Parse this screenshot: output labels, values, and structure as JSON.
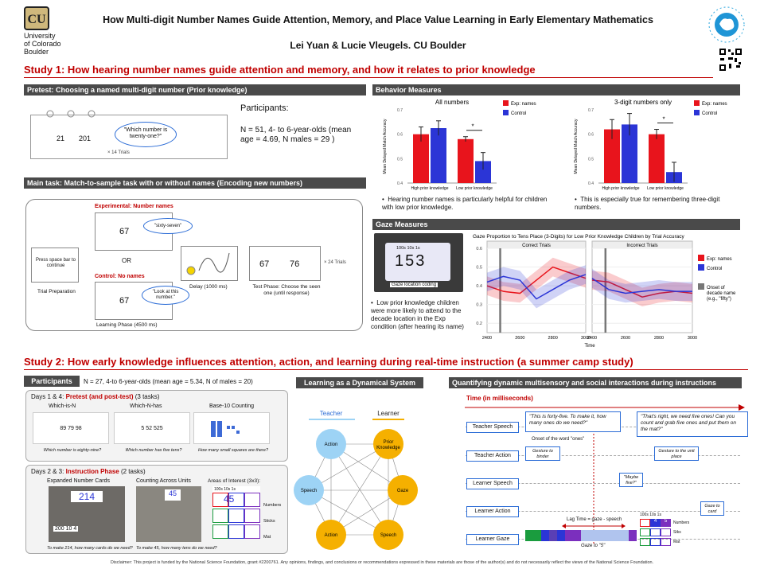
{
  "header": {
    "university_line1": "University",
    "university_line2": "of Colorado",
    "university_line3": "Boulder",
    "title": "How Multi-digit Number Names Guide Attention, Memory, and Place Value Learning in Early Elementary Mathematics",
    "authors": "Lei Yuan & Lucie Vleugels. CU Boulder"
  },
  "study1": {
    "heading": "Study 1: How hearing number names guide attention and memory, and how it relates to prior knowledge",
    "pretest": {
      "title": "Pretest: Choosing a named multi-digit number (Prior knowledge)",
      "num_a": "21",
      "num_b": "201",
      "bubble": "\"Which number is twenty-one?\"",
      "trials": "× 14 Trials",
      "participants_label": "Participants:",
      "participants_text": "N = 51, 4- to 6-year-olds (mean age = 4.69, N males = 29 )"
    },
    "main_task": {
      "title": "Main task: Match-to-sample task with or without names (Encoding new numbers)",
      "exp_label": "Experimental: Number names",
      "ctrl_label": "Control: No names",
      "sample_num": "67",
      "bubble_exp": "\"sixty-seven\"",
      "bubble_ctrl": "\"Look at this number.\"",
      "or_text": "OR",
      "press_space": "Press space bar to continue",
      "trial_prep": "Trial Preparation",
      "delay": "Delay (1000 ms)",
      "test_a": "67",
      "test_b": "76",
      "test_trials": "× 24 Trials",
      "test_phase": "Test Phase: Choose the seen one (until response)",
      "learning_phase": "Learning Phase (4500 ms)"
    },
    "behavior": {
      "title": "Behavior Measures",
      "bullet1": "Hearing number names is particularly helpful for children with low prior knowledge.",
      "bullet2": "This is especially true for remembering three-digit numbers."
    },
    "gaze": {
      "title": "Gaze Measures",
      "photo_num": "153",
      "photo_header": "100s 10s 1s",
      "photo_caption": "Gaze location coding",
      "bullet": "Low prior knowledge children were more likely to attend to the decade location in the Exp condition (after hearing its name)"
    }
  },
  "chart_data": [
    {
      "type": "bar",
      "title": "All numbers",
      "ylabel": "Mean Delayed Match Accuracy",
      "ylim": [
        0.4,
        0.7
      ],
      "yticks": [
        "0.4",
        "0.5",
        "0.6",
        "0.7"
      ],
      "categories": [
        "High prior knowledge",
        "Low prior knowledge"
      ],
      "series": [
        {
          "name": "Exp: names",
          "color": "#e8141c",
          "values": [
            0.6,
            0.58
          ],
          "errors": [
            0.03,
            0.01
          ]
        },
        {
          "name": "Control",
          "color": "#2b35d6",
          "values": [
            0.625,
            0.49
          ],
          "errors": [
            0.03,
            0.035
          ]
        }
      ],
      "annotation": "*",
      "legend": "top-right"
    },
    {
      "type": "bar",
      "title": "3-digit numbers only",
      "ylabel": "Mean Delayed Match Accuracy",
      "ylim": [
        0.4,
        0.7
      ],
      "yticks": [
        "0.4",
        "0.5",
        "0.6",
        "0.7"
      ],
      "categories": [
        "High prior knowledge",
        "Low prior knowledge"
      ],
      "series": [
        {
          "name": "Exp: names",
          "color": "#e8141c",
          "values": [
            0.62,
            0.6
          ],
          "errors": [
            0.04,
            0.02
          ]
        },
        {
          "name": "Control",
          "color": "#2b35d6",
          "values": [
            0.64,
            0.445
          ],
          "errors": [
            0.045,
            0.04
          ]
        }
      ],
      "annotation": "*",
      "legend": "top-right"
    },
    {
      "type": "line",
      "title": "Gaze Proportion to Tens Place (3-Digits) for Low Prior Knowledge Children by Trial Accuracy",
      "xlabel": "Time",
      "ylim": [
        0.15,
        0.6
      ],
      "yticks": [
        "0.2",
        "0.3",
        "0.4",
        "0.5",
        "0.6"
      ],
      "xticks": [
        "2400",
        "2600",
        "2800",
        "3000"
      ],
      "panels": [
        "Correct Trials",
        "Incorrect Trials"
      ],
      "x": [
        2400,
        2500,
        2600,
        2700,
        2800,
        2900,
        3000
      ],
      "series": [
        {
          "name": "Exp: names",
          "color": "#e8141c",
          "panel": "Correct Trials",
          "values": [
            0.4,
            0.37,
            0.36,
            0.43,
            0.5,
            0.47,
            0.44
          ]
        },
        {
          "name": "Control",
          "color": "#2b35d6",
          "panel": "Correct Trials",
          "values": [
            0.42,
            0.45,
            0.43,
            0.33,
            0.38,
            0.43,
            0.46
          ]
        },
        {
          "name": "Exp: names",
          "color": "#e8141c",
          "panel": "Incorrect Trials",
          "values": [
            0.43,
            0.42,
            0.38,
            0.34,
            0.36,
            0.37,
            0.36
          ]
        },
        {
          "name": "Control",
          "color": "#2b35d6",
          "panel": "Incorrect Trials",
          "values": [
            0.44,
            0.38,
            0.36,
            0.37,
            0.38,
            0.37,
            0.37
          ]
        }
      ],
      "vline_label": "Onset of decade name (e.g., \"fifty\")",
      "legend": "right"
    }
  ],
  "study2": {
    "heading": "Study 2: How early knowledge influences attention, action, and learning during real-time instruction (a summer camp study)",
    "participants_label": "Participants",
    "participants_text": "N = 27, 4-to 6-year-olds (mean age = 5.34, N of males = 20)",
    "days14_label": "Days 1 & 4:",
    "days14_phase": "Pretest (and post-test)",
    "days14_tasks": "(3 tasks)",
    "tasks": [
      {
        "name": "Which-is-N",
        "values": "89  79  98",
        "question": "Which number is eighty-nine?"
      },
      {
        "name": "Which-N-has",
        "values": "5   52  525",
        "question": "Which number has five tens?"
      },
      {
        "name": "Base-10 Counting",
        "values": "",
        "question": "How many small squares are there?"
      }
    ],
    "days23_label": "Days 2 & 3:",
    "days23_phase": "Instruction Phase",
    "days23_tasks": "(2 tasks)",
    "expanded_cards": "Expanded Number Cards",
    "counting_units": "Counting Across Units",
    "aoi": "Areas of Interest (3x3):",
    "card_num": "214",
    "card_small": "200  10  4",
    "aoi_header": "100s 10s 1s",
    "aoi_num": "45",
    "aoi_rows": [
      "Numbers",
      "Sticks",
      "Mat"
    ],
    "q1": "To make 214, how many cards do we need?",
    "q2": "To make 45, how many tens do we need?",
    "dyn_title": "Learning as a Dynamical System",
    "teacher": "Teacher",
    "learner": "Learner",
    "nodes": [
      "Action",
      "Prior Knowledge",
      "Speech",
      "Gaze",
      "Action",
      "Speech"
    ],
    "quant_title": "Quantifying dynamic multisensory and social interactions during instructions",
    "time_label": "Time (in milliseconds)",
    "rows": [
      "Teacher Speech",
      "Teacher Action",
      "Learner Speech",
      "Learner Action",
      "Learner Gaze"
    ],
    "quote1": "\"This is forty-five. To make it, how many ones do we need?\"",
    "quote2": "\"That's right, we need five ones! Can you count and grab five ones and put them on the mat?\"",
    "onset": "Onset of the word \"ones\"",
    "gesture1": "Gesture to binder",
    "gesture2": "Gesture to the unit place",
    "maybe": "\"Maybe five?\"",
    "gaze_card": "Gaze to card",
    "lag": "Lag Time = gaze - speech",
    "gaze5": "Gaze to \"5\"",
    "mini_header": "100s 10s 1s",
    "mini_rows": [
      "Numbers",
      "Stks",
      "Mat"
    ],
    "mini_digits": [
      "4",
      "5"
    ]
  },
  "footer": "Disclaimer: This project is funded by the National Science Foundation, grant #2200761. Any opinions, findings, and conclusions or recommendations expressed in these materials are those of the author(s) and do not necessarily reflect the views of the National Science Foundation.",
  "colors": {
    "accent": "#c00000",
    "exp": "#e8141c",
    "control": "#2b35d6",
    "gold": "#f5b000",
    "blue_node": "#9dd3f5"
  }
}
